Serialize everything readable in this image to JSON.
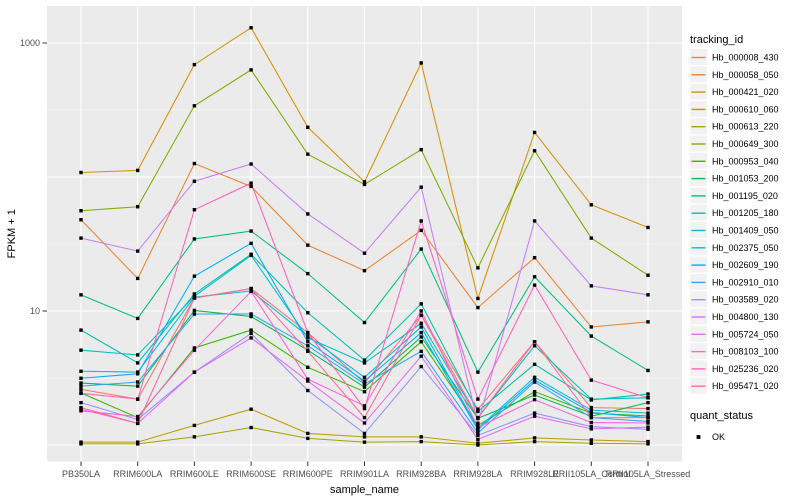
{
  "figure": {
    "background": "#FFFFFF",
    "panel_background": "#EBEBEB",
    "grid_color": "#FFFFFF",
    "tick_text_color": "#4D4D4D",
    "axis_title_color": "#000000",
    "tick_mark_color": "#333333",
    "legend_key_background": "#F2F2F2",
    "point_color": "#000000"
  },
  "chart_data": {
    "type": "line",
    "title": "",
    "xlabel": "sample_name",
    "ylabel": "FPKM + 1",
    "y_scale": "log10",
    "legend_position": "right",
    "grid": true,
    "y_tick_labels": [
      {
        "value": 10,
        "label": "10"
      },
      {
        "value": 1000,
        "label": "1000"
      }
    ],
    "y_major_gridlines": [
      1,
      10,
      100,
      1000
    ],
    "y_minor_gridlines": [
      3.162,
      31.62,
      316.2
    ],
    "categories": [
      "PB350LA",
      "RRIM600LA",
      "RRIM600LE",
      "RRIM600SE",
      "RRIM600PE",
      "RRIM901LA",
      "RRIM928BA",
      "RRIM928LA",
      "RRIM928LE",
      "RRII105LA_Control",
      "RRII105LA_Stressed"
    ],
    "series": [
      {
        "name": "Hb_000008_430",
        "color": "#F8766D",
        "values": [
          2.6,
          2.2,
          12.5,
          14.7,
          6.9,
          2.9,
          9.3,
          1.85,
          5.9,
          1.9,
          1.87
        ]
      },
      {
        "name": "Hb_000058_050",
        "color": "#EA8331",
        "values": [
          48,
          17.5,
          126,
          85,
          31,
          20,
          40,
          10.6,
          25,
          7.6,
          8.3
        ]
      },
      {
        "name": "Hb_000421_020",
        "color": "#D89000",
        "values": [
          108,
          112,
          690,
          1300,
          235,
          92,
          710,
          12.4,
          215,
          62,
          42
        ]
      },
      {
        "name": "Hb_000610_060",
        "color": "#C09B00",
        "values": [
          1.05,
          1.05,
          1.4,
          1.85,
          1.22,
          1.15,
          1.15,
          1.03,
          1.13,
          1.09,
          1.06
        ]
      },
      {
        "name": "Hb_000613_220",
        "color": "#A3A500",
        "values": [
          1.02,
          1.02,
          1.15,
          1.35,
          1.12,
          1.05,
          1.06,
          1.0,
          1.06,
          1.03,
          1.02
        ]
      },
      {
        "name": "Hb_000649_300",
        "color": "#7CAE00",
        "values": [
          56,
          60,
          340,
          630,
          148,
          88,
          160,
          21,
          157,
          35,
          18.5
        ]
      },
      {
        "name": "Hb_000953_040",
        "color": "#39B600",
        "values": [
          2.45,
          1.6,
          5.3,
          7.2,
          3.8,
          2.5,
          5.9,
          1.4,
          2.5,
          1.73,
          1.65
        ]
      },
      {
        "name": "Hb_001053_200",
        "color": "#00BB4E",
        "values": [
          2.9,
          2.75,
          10.1,
          9.1,
          5.1,
          2.7,
          6.4,
          1.58,
          2.36,
          1.64,
          2.07
        ]
      },
      {
        "name": "Hb_001195_020",
        "color": "#00BF7D",
        "values": [
          13.2,
          8.8,
          34.5,
          39.5,
          19,
          8.2,
          29,
          3.5,
          18,
          6.5,
          3.6
        ]
      },
      {
        "name": "Hb_001205_180",
        "color": "#00C0AF",
        "values": [
          7.2,
          4.1,
          13.4,
          26.5,
          9.7,
          4.3,
          11.3,
          1.78,
          4.0,
          2.17,
          2.4
        ]
      },
      {
        "name": "Hb_001409_050",
        "color": "#00BFC4",
        "values": [
          5.1,
          4.7,
          12.9,
          26.0,
          6.3,
          4.1,
          8.1,
          1.6,
          5.5,
          2.2,
          2.25
        ]
      },
      {
        "name": "Hb_002375_050",
        "color": "#00BAE0",
        "values": [
          3.55,
          3.5,
          12.7,
          14.1,
          6.5,
          3.2,
          7.6,
          1.33,
          3.2,
          1.82,
          1.73
        ]
      },
      {
        "name": "Hb_002609_190",
        "color": "#00B0F6",
        "values": [
          3.15,
          3.4,
          18.2,
          32,
          5.9,
          3.0,
          6.9,
          1.3,
          3.05,
          1.75,
          1.6
        ]
      },
      {
        "name": "Hb_002910_010",
        "color": "#35A2FF",
        "values": [
          2.75,
          2.95,
          9.5,
          9.5,
          5.5,
          2.85,
          5.0,
          1.23,
          2.95,
          1.6,
          1.5
        ]
      },
      {
        "name": "Hb_003589_020",
        "color": "#9590FF",
        "values": [
          2.07,
          1.55,
          3.5,
          6.8,
          2.55,
          1.22,
          3.85,
          1.18,
          1.73,
          1.37,
          1.31
        ]
      },
      {
        "name": "Hb_004800_130",
        "color": "#C77CFF",
        "values": [
          35,
          28,
          93,
          125,
          53,
          27,
          84,
          1.45,
          47,
          15.4,
          13.2
        ]
      },
      {
        "name": "Hb_005724_050",
        "color": "#E76BF3",
        "values": [
          1.85,
          1.45,
          3.5,
          6.3,
          3.0,
          1.46,
          4.6,
          1.1,
          1.64,
          1.32,
          1.36
        ]
      },
      {
        "name": "Hb_008103_100",
        "color": "#FA62DB",
        "values": [
          1.8,
          1.63,
          5.1,
          14.0,
          3.1,
          1.96,
          10.0,
          1.35,
          2.18,
          1.47,
          1.46
        ]
      },
      {
        "name": "Hb_025236_020",
        "color": "#FF62BC",
        "values": [
          2.43,
          2.2,
          57,
          90,
          6.9,
          1.87,
          47,
          2.2,
          15.6,
          3.05,
          2.25
        ]
      },
      {
        "name": "Hb_095471_020",
        "color": "#FF6A98",
        "values": [
          1.9,
          1.45,
          12.5,
          14.7,
          5.0,
          1.6,
          9.3,
          1.6,
          5.9,
          1.6,
          1.6
        ]
      }
    ],
    "legend": {
      "color_legend_title": "tracking_id",
      "shape_legend_title": "quant_status",
      "shape_items": [
        "OK"
      ]
    }
  }
}
